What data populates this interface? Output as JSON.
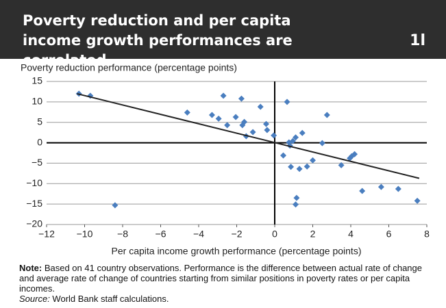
{
  "chart_data": {
    "type": "scatter",
    "title": "Poverty reduction and per capita income growth performances are correlated",
    "panel_label": "1l",
    "y_label": "Poverty reduction performance (percentage points)",
    "x_label": "Per capita income growth performance (percentage points)",
    "color": "#4a7ebf",
    "x": [
      -10.3,
      -9.7,
      -4.6,
      -3.3,
      -2.95,
      -2.7,
      -2.5,
      -2.05,
      -1.75,
      -1.7,
      -1.6,
      -1.5,
      -1.15,
      -0.75,
      -0.45,
      -0.4,
      -0.05,
      -8.4,
      0.45,
      0.65,
      0.75,
      0.8,
      0.85,
      0.95,
      1.1,
      1.15,
      1.1,
      1.3,
      1.45,
      1.7,
      2.0,
      2.5,
      2.75,
      3.5,
      3.95,
      4.05,
      4.2,
      4.6,
      5.6,
      6.5,
      7.5
    ],
    "values": [
      12.0,
      11.5,
      7.4,
      6.8,
      5.9,
      11.5,
      4.3,
      6.3,
      10.8,
      4.3,
      5.1,
      1.6,
      2.6,
      8.8,
      4.6,
      3.1,
      1.8,
      -15.3,
      -3.1,
      10.0,
      0.1,
      -0.7,
      -5.9,
      0.4,
      1.3,
      -13.5,
      -15.1,
      -6.4,
      2.4,
      -5.8,
      -4.3,
      -0.1,
      6.8,
      -5.5,
      -3.8,
      -3.3,
      -2.8,
      -11.8,
      -10.8,
      -11.3,
      -14.2
    ],
    "trendline": {
      "color": "#222222",
      "x": [
        -10.4,
        7.6
      ],
      "y": [
        12.0,
        -8.7
      ]
    },
    "xlim": [
      -12,
      8
    ],
    "xticks": [
      {
        "value": -12,
        "label": "−12"
      },
      {
        "value": -10,
        "label": "−10"
      },
      {
        "value": -8,
        "label": "−8"
      },
      {
        "value": -6,
        "label": "−6"
      },
      {
        "value": -4,
        "label": "−4"
      },
      {
        "value": -2,
        "label": "−2"
      },
      0,
      2,
      4,
      6,
      8
    ],
    "ylim": [
      -20,
      15
    ],
    "yticks": [
      {
        "value": -20,
        "label": "−20"
      },
      {
        "value": -15,
        "label": "−15"
      },
      {
        "value": -10,
        "label": "−10"
      },
      {
        "value": -5,
        "label": "−5"
      },
      0,
      5,
      10,
      15
    ],
    "grid": true
  },
  "note": {
    "label": "Note:",
    "text": " Based on 41 country observations. Performance is the difference between actual rate of change and average rate of change of countries starting from similar positions in poverty rates or per capita incomes.",
    "source_label": "Source:",
    "source_text": " World Bank staff calculations."
  }
}
